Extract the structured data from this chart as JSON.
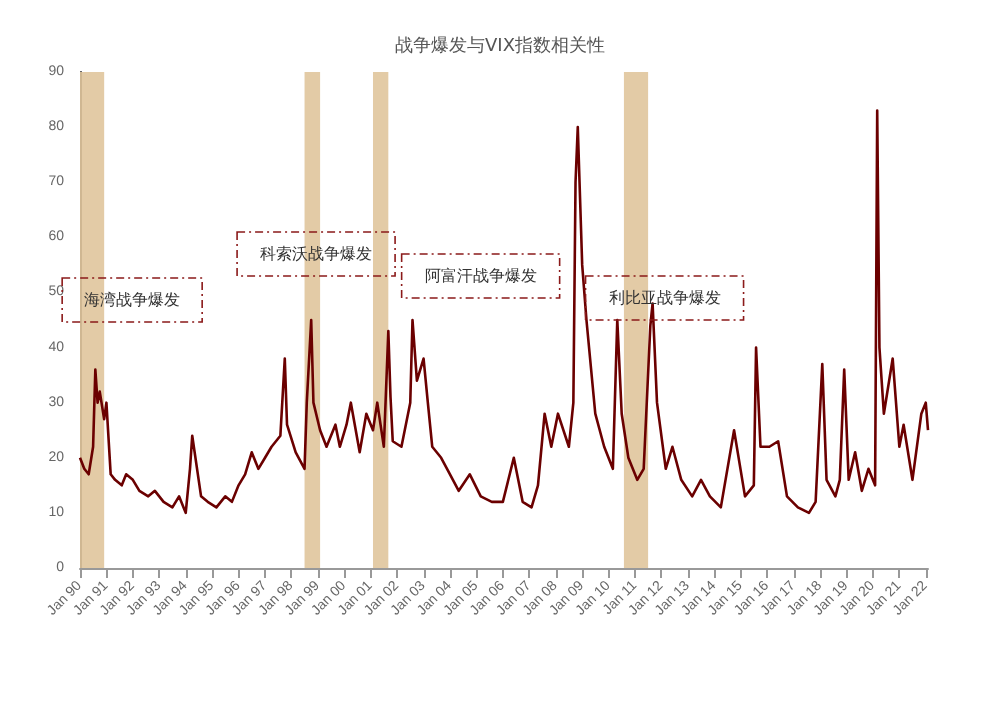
{
  "chart_data": {
    "type": "line",
    "title": "战争爆发与VIX指数相关性",
    "x": [
      "1990-01",
      "1990-03",
      "1990-05",
      "1990-07",
      "1990-08",
      "1990-09",
      "1990-10",
      "1990-12",
      "1991-01",
      "1991-03",
      "1991-05",
      "1991-08",
      "1991-10",
      "1992-01",
      "1992-04",
      "1992-08",
      "1992-11",
      "1993-03",
      "1993-07",
      "1993-10",
      "1994-01",
      "1994-03",
      "1994-04",
      "1994-08",
      "1994-11",
      "1995-03",
      "1995-07",
      "1995-10",
      "1996-01",
      "1996-04",
      "1996-07",
      "1996-10",
      "1997-01",
      "1997-04",
      "1997-08",
      "1997-10",
      "1997-11",
      "1998-03",
      "1998-07",
      "1998-08",
      "1998-10",
      "1998-11",
      "1999-02",
      "1999-05",
      "1999-09",
      "1999-11",
      "2000-02",
      "2000-04",
      "2000-08",
      "2000-11",
      "2001-02",
      "2001-04",
      "2001-07",
      "2001-09",
      "2001-10",
      "2001-11",
      "2002-03",
      "2002-07",
      "2002-08",
      "2002-10",
      "2003-01",
      "2003-03",
      "2003-05",
      "2003-09",
      "2004-01",
      "2004-05",
      "2004-10",
      "2005-03",
      "2005-08",
      "2006-01",
      "2006-06",
      "2006-10",
      "2007-02",
      "2007-05",
      "2007-08",
      "2007-11",
      "2008-02",
      "2008-07",
      "2008-09",
      "2008-10",
      "2008-11",
      "2009-01",
      "2009-03",
      "2009-07",
      "2009-11",
      "2010-03",
      "2010-05",
      "2010-07",
      "2010-10",
      "2011-02",
      "2011-05",
      "2011-08",
      "2011-09",
      "2011-11",
      "2012-03",
      "2012-06",
      "2012-10",
      "2013-03",
      "2013-07",
      "2013-11",
      "2014-04",
      "2014-10",
      "2015-03",
      "2015-07",
      "2015-08",
      "2015-10",
      "2016-02",
      "2016-06",
      "2016-10",
      "2017-03",
      "2017-08",
      "2017-11",
      "2018-02",
      "2018-04",
      "2018-08",
      "2018-10",
      "2018-12",
      "2019-02",
      "2019-05",
      "2019-08",
      "2019-11",
      "2020-02",
      "2020-03",
      "2020-04",
      "2020-06",
      "2020-10",
      "2021-01",
      "2021-03",
      "2021-07",
      "2021-11",
      "2022-01",
      "2022-02"
    ],
    "values": [
      20,
      18,
      17,
      22,
      36,
      30,
      32,
      27,
      30,
      17,
      16,
      15,
      17,
      16,
      14,
      13,
      14,
      12,
      11,
      13,
      10,
      18,
      24,
      13,
      12,
      11,
      13,
      12,
      15,
      17,
      21,
      18,
      20,
      22,
      24,
      38,
      26,
      21,
      18,
      30,
      45,
      30,
      25,
      22,
      26,
      22,
      26,
      30,
      21,
      28,
      25,
      30,
      22,
      43,
      31,
      23,
      22,
      30,
      45,
      34,
      38,
      30,
      22,
      20,
      17,
      14,
      17,
      13,
      12,
      12,
      20,
      12,
      11,
      15,
      28,
      22,
      28,
      22,
      30,
      70,
      80,
      55,
      45,
      28,
      22,
      18,
      45,
      28,
      20,
      16,
      18,
      44,
      48,
      30,
      18,
      22,
      16,
      13,
      16,
      13,
      11,
      25,
      13,
      15,
      40,
      22,
      22,
      23,
      13,
      11,
      10,
      12,
      37,
      16,
      13,
      16,
      36,
      16,
      21,
      14,
      18,
      15,
      83,
      40,
      28,
      38,
      22,
      26,
      16,
      28,
      30,
      25
    ],
    "color": "#6b0000",
    "xlim": [
      "1990-01",
      "2022-02"
    ],
    "xticks": [
      {
        "value": "1990-01",
        "label": "Jan 90"
      },
      {
        "value": "1991-01",
        "label": "Jan 91"
      },
      {
        "value": "1992-01",
        "label": "Jan 92"
      },
      {
        "value": "1993-01",
        "label": "Jan 93"
      },
      {
        "value": "1994-01",
        "label": "Jan 94"
      },
      {
        "value": "1995-01",
        "label": "Jan 95"
      },
      {
        "value": "1996-01",
        "label": "Jan 96"
      },
      {
        "value": "1997-01",
        "label": "Jan 97"
      },
      {
        "value": "1998-01",
        "label": "Jan 98"
      },
      {
        "value": "1999-01",
        "label": "Jan 99"
      },
      {
        "value": "2000-01",
        "label": "Jan 00"
      },
      {
        "value": "2001-01",
        "label": "Jan 01"
      },
      {
        "value": "2002-01",
        "label": "Jan 02"
      },
      {
        "value": "2003-01",
        "label": "Jan 03"
      },
      {
        "value": "2004-01",
        "label": "Jan 04"
      },
      {
        "value": "2005-01",
        "label": "Jan 05"
      },
      {
        "value": "2006-01",
        "label": "Jan 06"
      },
      {
        "value": "2007-01",
        "label": "Jan 07"
      },
      {
        "value": "2008-01",
        "label": "Jan 08"
      },
      {
        "value": "2009-01",
        "label": "Jan 09"
      },
      {
        "value": "2010-01",
        "label": "Jan 10"
      },
      {
        "value": "2011-01",
        "label": "Jan 11"
      },
      {
        "value": "2012-01",
        "label": "Jan 12"
      },
      {
        "value": "2013-01",
        "label": "Jan 13"
      },
      {
        "value": "2014-01",
        "label": "Jan 14"
      },
      {
        "value": "2015-01",
        "label": "Jan 15"
      },
      {
        "value": "2016-01",
        "label": "Jan 16"
      },
      {
        "value": "2017-01",
        "label": "Jan 17"
      },
      {
        "value": "2018-01",
        "label": "Jan 18"
      },
      {
        "value": "2019-01",
        "label": "Jan 19"
      },
      {
        "value": "2020-01",
        "label": "Jan 20"
      },
      {
        "value": "2021-01",
        "label": "Jan 21"
      },
      {
        "value": "2022-01",
        "label": "Jan 22"
      }
    ],
    "ylim": [
      0,
      90
    ],
    "yticks": [
      0,
      10,
      20,
      30,
      40,
      50,
      60,
      70,
      80,
      90
    ],
    "grid": false,
    "bands": [
      {
        "axis": "x",
        "from": "1990-01",
        "to": "1990-12",
        "color": "#e0c59c"
      },
      {
        "axis": "x",
        "from": "1998-07",
        "to": "1999-02",
        "color": "#e0c59c"
      },
      {
        "axis": "x",
        "from": "2001-02",
        "to": "2001-09",
        "color": "#e0c59c"
      },
      {
        "axis": "x",
        "from": "2010-08",
        "to": "2011-07",
        "color": "#e0c59c"
      }
    ],
    "annotations": [
      "海湾战争爆发",
      "科索沃战争爆发",
      "阿富汗战争爆发",
      "利比亚战争爆发"
    ]
  }
}
